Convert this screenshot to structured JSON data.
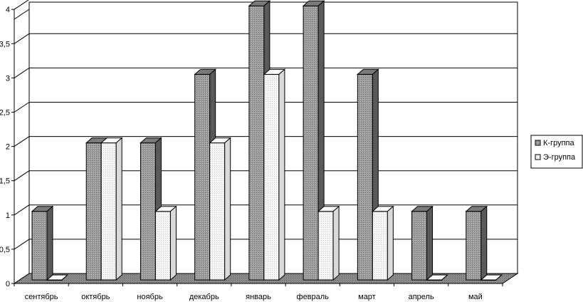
{
  "chart_data": {
    "type": "bar",
    "categories": [
      "сентябрь",
      "октябрь",
      "ноябрь",
      "декабрь",
      "январь",
      "февраль",
      "март",
      "апрель",
      "май"
    ],
    "series": [
      {
        "name": "К-группа",
        "values": [
          1,
          2,
          2,
          3,
          4,
          4,
          3,
          1,
          1
        ],
        "color": "#9a9a9a"
      },
      {
        "name": "Э-группа",
        "values": [
          0,
          2,
          1,
          2,
          3,
          1,
          1,
          0,
          0
        ],
        "color": "#f2f2f2"
      }
    ],
    "y_ticks": [
      "0",
      "0,5",
      "1",
      "1,5",
      "2",
      "2,5",
      "3",
      "3,5",
      "4"
    ],
    "ylim": [
      0,
      4
    ],
    "grid": true,
    "legend_position": "right",
    "style": "3d-clustered-column"
  }
}
